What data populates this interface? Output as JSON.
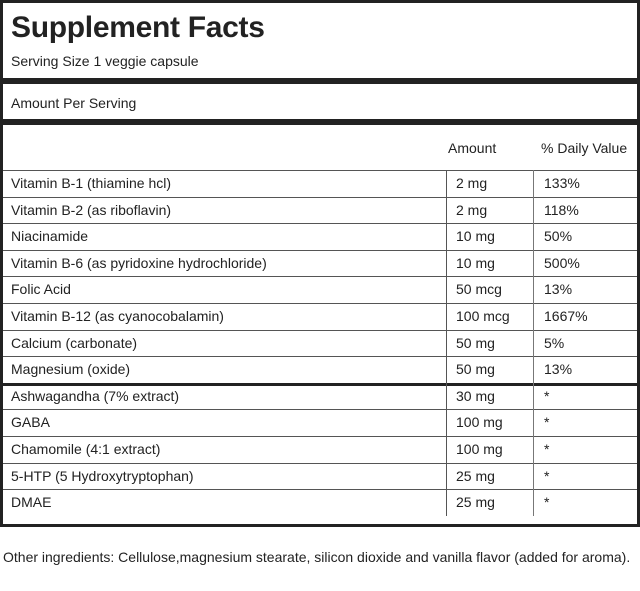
{
  "title": "Supplement Facts",
  "serving_size": "Serving Size 1 veggie capsule",
  "amount_per_serving": "Amount Per Serving",
  "columns": {
    "amount": "Amount",
    "daily_value": "% Daily Value"
  },
  "vitamins": [
    {
      "name": "Vitamin B-1 (thiamine hcl)",
      "amount": "2 mg",
      "dv": "133%"
    },
    {
      "name": "Vitamin B-2 (as riboflavin)",
      "amount": "2 mg",
      "dv": "118%"
    },
    {
      "name": "Niacinamide",
      "amount": "10 mg",
      "dv": "50%"
    },
    {
      "name": "Vitamin B-6 (as pyridoxine hydrochloride)",
      "amount": "10 mg",
      "dv": "500%"
    },
    {
      "name": "Folic Acid",
      "amount": "50 mcg",
      "dv": "13%"
    },
    {
      "name": "Vitamin B-12 (as cyanocobalamin)",
      "amount": "100 mcg",
      "dv": "1667%"
    },
    {
      "name": "Calcium (carbonate)",
      "amount": "50 mg",
      "dv": "5%"
    },
    {
      "name": "Magnesium (oxide)",
      "amount": "50 mg",
      "dv": "13%"
    }
  ],
  "others": [
    {
      "name": "Ashwagandha (7% extract)",
      "amount": "30 mg",
      "dv": "*"
    },
    {
      "name": "GABA",
      "amount": "100 mg",
      "dv": "*"
    },
    {
      "name": "Chamomile (4:1 extract)",
      "amount": "100 mg",
      "dv": "*"
    },
    {
      "name": "5-HTP (5 Hydroxytryptophan)",
      "amount": "25 mg",
      "dv": "*"
    },
    {
      "name": "DMAE",
      "amount": "25 mg",
      "dv": "*"
    }
  ],
  "other_ingredients": "Other ingredients: Cellulose,magnesium stearate, silicon dioxide and vanilla flavor (added for aroma)."
}
